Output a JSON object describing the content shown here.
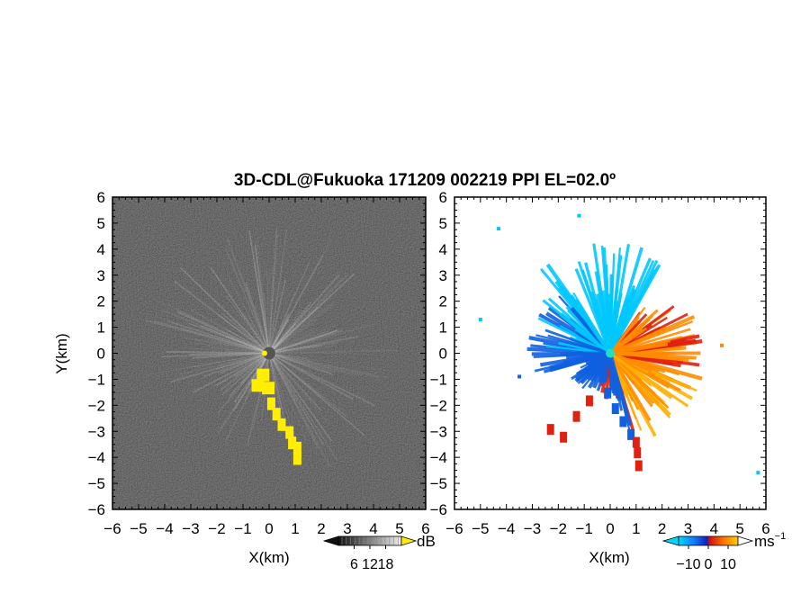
{
  "title": "3D-CDL@Fukuoka 171209 002219 PPI EL=02.0º",
  "chart_data": [
    {
      "type": "heatmap",
      "xlabel": "X(km)",
      "ylabel": "Y(km)",
      "xlim": [
        -6,
        6
      ],
      "ylim": [
        -6,
        6
      ],
      "x_ticks": [
        "−6",
        "−5",
        "−4",
        "−3",
        "−2",
        "−1",
        "0",
        "1",
        "2",
        "3",
        "4",
        "5",
        "6"
      ],
      "y_ticks": [
        "6",
        "5",
        "4",
        "3",
        "2",
        "1",
        "0",
        "−1",
        "−2",
        "−3",
        "−4",
        "−5",
        "−6"
      ],
      "colorbar": {
        "label": "dB",
        "ticks": [
          "6",
          "12",
          "18"
        ],
        "range": [
          0,
          24
        ]
      },
      "colors": {
        "background": "#2a2a2a",
        "streak": "#d8d8d8",
        "highlight": "#ffee00"
      }
    },
    {
      "type": "heatmap",
      "xlabel": "X(km)",
      "xlim": [
        -6,
        6
      ],
      "ylim": [
        -6,
        6
      ],
      "x_ticks": [
        "−6",
        "−5",
        "−4",
        "−3",
        "−2",
        "−1",
        "0",
        "1",
        "2",
        "3",
        "4",
        "5",
        "6"
      ],
      "y_ticks": [
        "6",
        "5",
        "4",
        "3",
        "2",
        "1",
        "0",
        "−1",
        "−2",
        "−3",
        "−4",
        "−5",
        "−6"
      ],
      "colorbar": {
        "label": "ms",
        "label_sup": "−1",
        "ticks": [
          "−10",
          "0",
          "10"
        ],
        "range": [
          -15,
          15
        ]
      },
      "colors": {
        "approaching_far": "#00c8ff",
        "approaching": "#1060e0",
        "receding": "#ff8c00",
        "receding_near": "#e02010",
        "center": "#20e0c0"
      }
    }
  ]
}
